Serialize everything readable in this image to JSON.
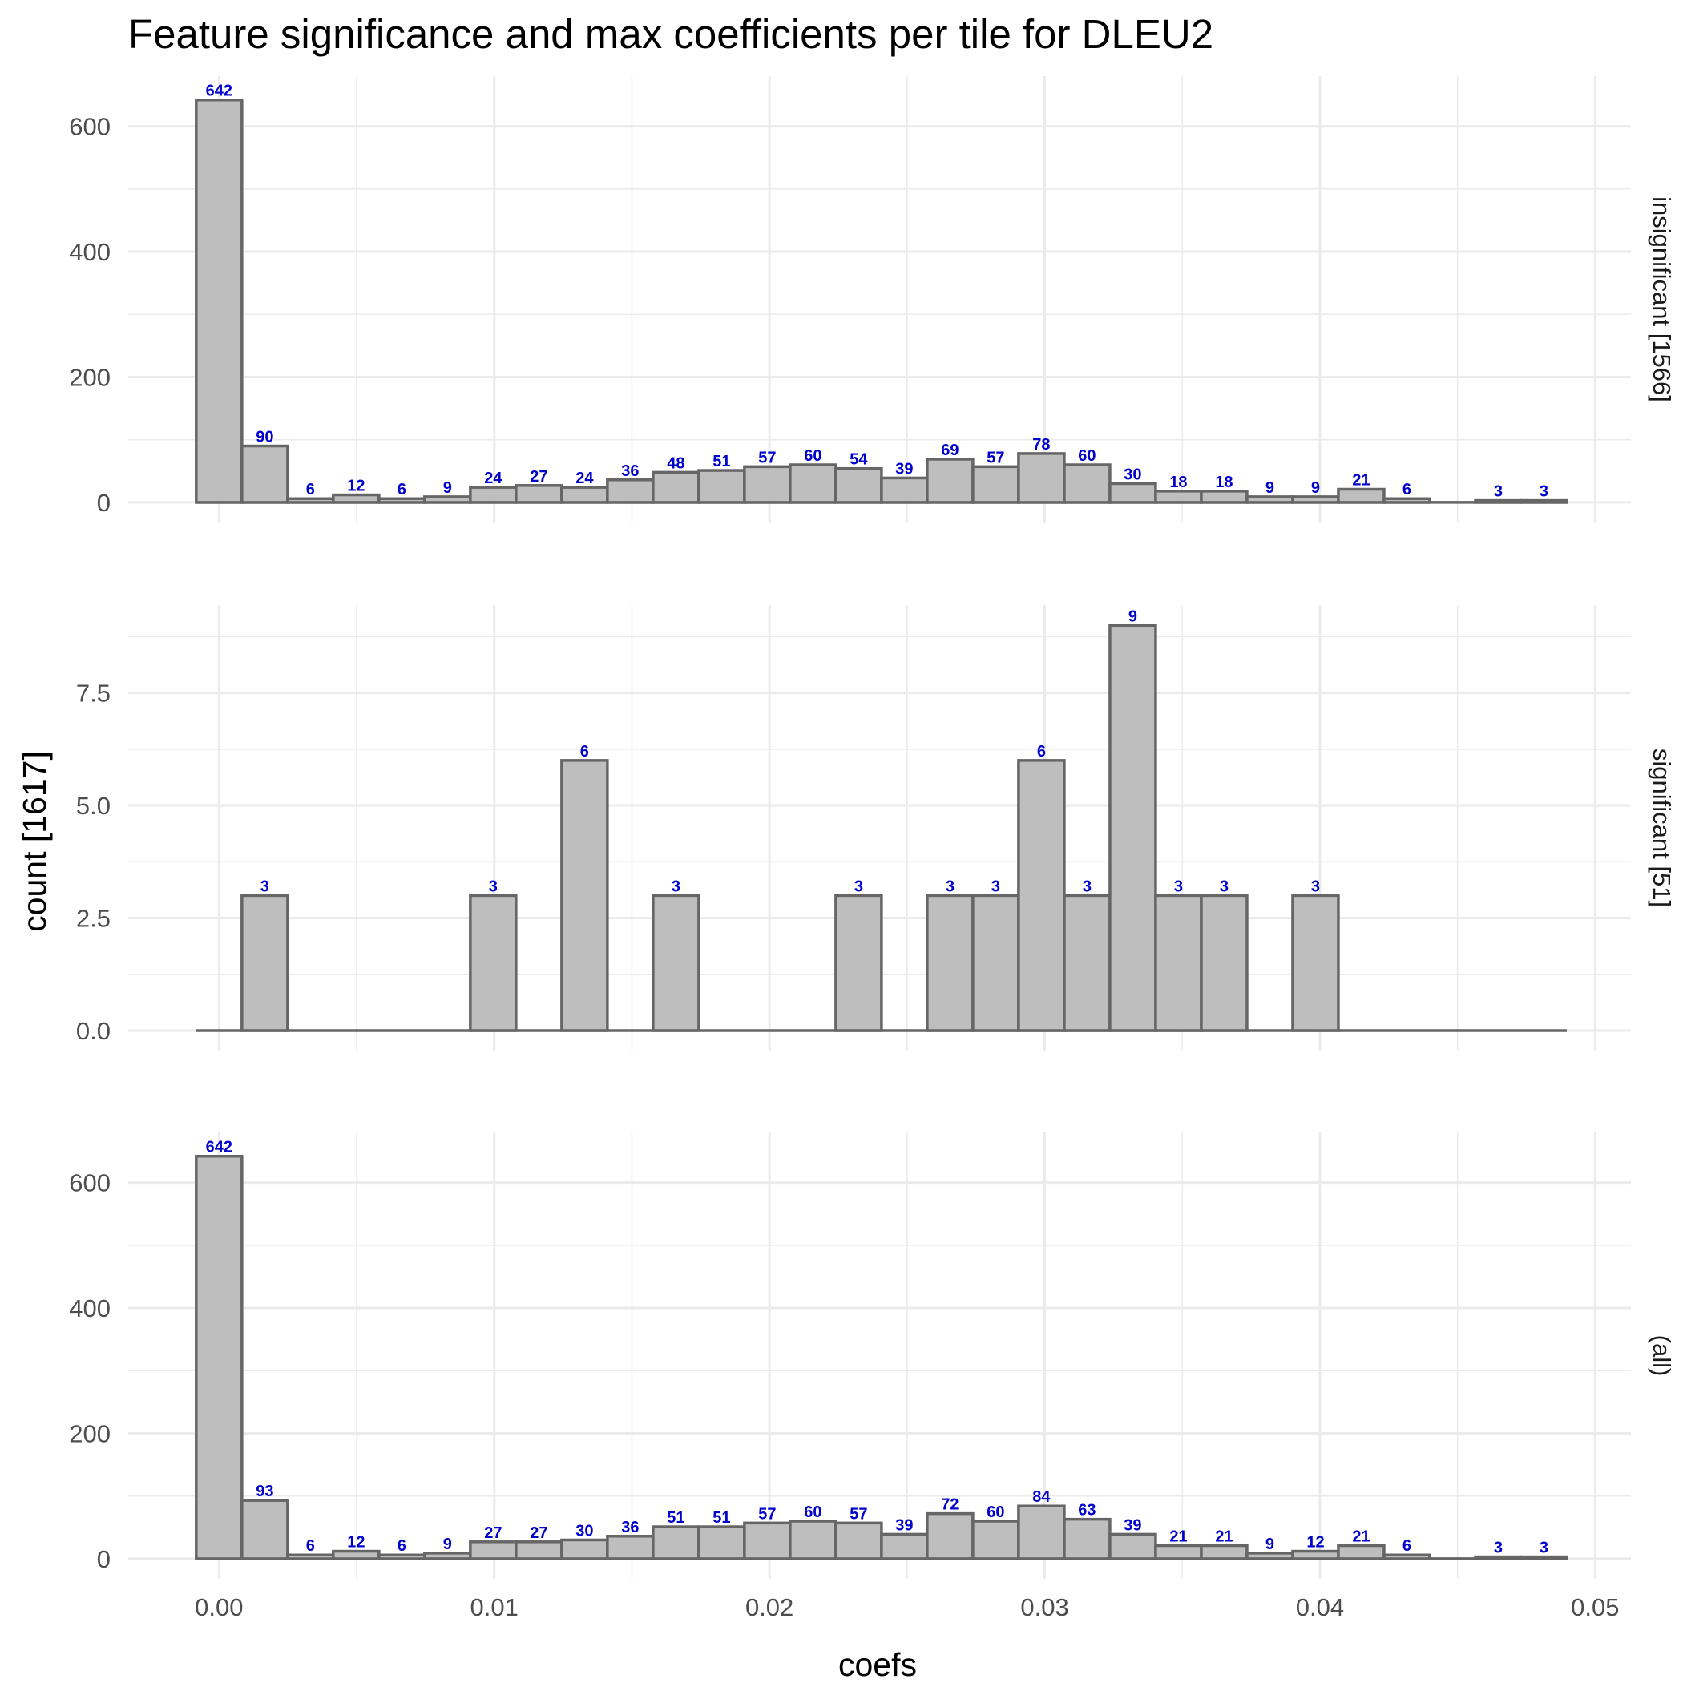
{
  "chart_data": {
    "type": "bar",
    "title": "Feature significance and max coefficients per tile for DLEU2",
    "xlabel": "coefs",
    "ylabel": "count [1617]",
    "x_ticks": [
      "0.00",
      "0.01",
      "0.02",
      "0.03",
      "0.04",
      "0.05"
    ],
    "xlim": [
      -0.0033,
      0.0513
    ],
    "bin_width": 0.00166,
    "first_bin_start": -0.00083,
    "facets": [
      {
        "name": "insignificant [1566]",
        "ylim": [
          0,
          680
        ],
        "y_ticks": [
          "0",
          "200",
          "400",
          "600"
        ],
        "values": [
          642,
          90,
          6,
          12,
          6,
          9,
          24,
          27,
          24,
          36,
          48,
          51,
          57,
          60,
          54,
          39,
          69,
          57,
          78,
          60,
          30,
          18,
          18,
          9,
          9,
          21,
          6,
          0,
          3,
          3
        ]
      },
      {
        "name": "significant [51]",
        "ylim": [
          0,
          9.45
        ],
        "y_ticks": [
          "0.0",
          "2.5",
          "5.0",
          "7.5"
        ],
        "values": [
          0,
          3,
          0,
          0,
          0,
          0,
          3,
          0,
          6,
          0,
          3,
          0,
          0,
          0,
          3,
          0,
          3,
          3,
          6,
          3,
          9,
          3,
          3,
          0,
          3,
          0,
          0,
          0,
          0,
          0
        ]
      },
      {
        "name": "(all)",
        "ylim": [
          0,
          680
        ],
        "y_ticks": [
          "0",
          "200",
          "400",
          "600"
        ],
        "values": [
          642,
          93,
          6,
          12,
          6,
          9,
          27,
          27,
          30,
          36,
          51,
          51,
          57,
          60,
          57,
          39,
          72,
          60,
          84,
          63,
          39,
          21,
          21,
          9,
          12,
          21,
          6,
          0,
          3,
          3
        ]
      }
    ],
    "bar_fill": "#bebebe",
    "bar_outline": "#666666",
    "label_color": "#0000cd",
    "grid": true,
    "legend": "none"
  }
}
